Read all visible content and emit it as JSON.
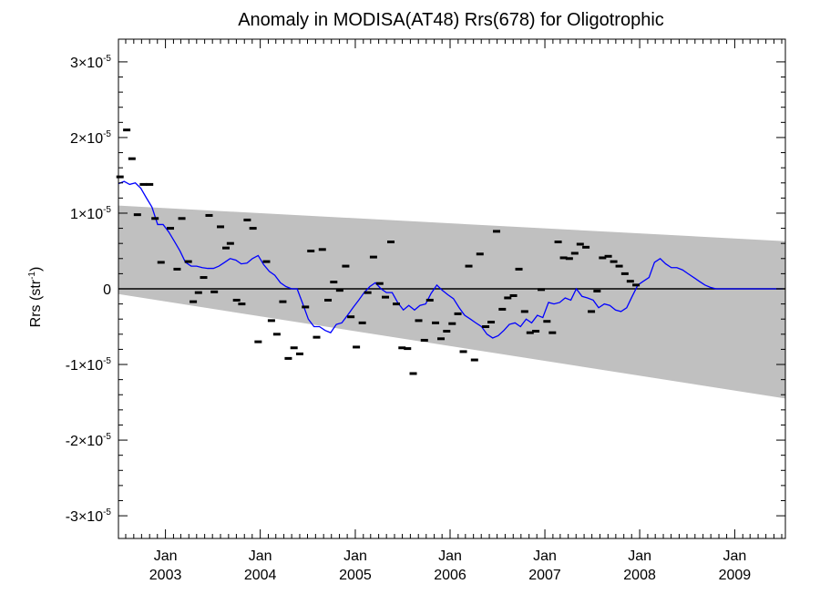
{
  "chart_data": {
    "type": "line",
    "title": "Anomaly in MODISA(AT48) Rrs(678) for Oligotrophic",
    "ylabel": {
      "base": "Rrs (str",
      "sup": "-1",
      "close": ")"
    },
    "xlabel": "",
    "xlim": [
      "2002-07-04",
      "2009-07-15"
    ],
    "ylim": [
      -3.3e-05,
      3.3e-05
    ],
    "grid": false,
    "legend": "none",
    "y_ticks": [
      {
        "value": -3e-05,
        "mant": "-3",
        "base": "×10",
        "exp": "-5"
      },
      {
        "value": -2e-05,
        "mant": "-2",
        "base": "×10",
        "exp": "-5"
      },
      {
        "value": -1e-05,
        "mant": "-1",
        "base": "×10",
        "exp": "-5"
      },
      {
        "value": 0,
        "mant": "0",
        "base": "",
        "exp": ""
      },
      {
        "value": 1e-05,
        "mant": "1",
        "base": "×10",
        "exp": "-5"
      },
      {
        "value": 2e-05,
        "mant": "2",
        "base": "×10",
        "exp": "-5"
      },
      {
        "value": 3e-05,
        "mant": "3",
        "base": "×10",
        "exp": "-5"
      }
    ],
    "x_ticks": [
      {
        "date": "2003-01-01",
        "month": "Jan",
        "year": "2003"
      },
      {
        "date": "2004-01-01",
        "month": "Jan",
        "year": "2004"
      },
      {
        "date": "2005-01-01",
        "month": "Jan",
        "year": "2005"
      },
      {
        "date": "2006-01-01",
        "month": "Jan",
        "year": "2006"
      },
      {
        "date": "2007-01-01",
        "month": "Jan",
        "year": "2007"
      },
      {
        "date": "2008-01-01",
        "month": "Jan",
        "year": "2008"
      },
      {
        "date": "2009-01-01",
        "month": "Jan",
        "year": "2009"
      }
    ],
    "colors": {
      "band": "#c0c0c0",
      "running_mean": "#0000ff",
      "points": "#000000",
      "zero_line": "#000000"
    },
    "envelope": {
      "upper": [
        [
          "2002-07-04",
          1.1e-05
        ],
        [
          "2009-07-15",
          6.3e-06
        ]
      ],
      "lower": [
        [
          "2002-07-04",
          -7e-07
        ],
        [
          "2009-07-15",
          -1.45e-05
        ]
      ]
    },
    "series": [
      {
        "style": "line",
        "x": [
          "2002-07-04",
          "2002-07-26",
          "2002-08-16",
          "2002-09-07",
          "2002-09-28",
          "2002-10-20",
          "2002-11-10",
          "2002-12-02",
          "2002-12-23",
          "2003-01-14",
          "2003-02-04",
          "2003-02-26",
          "2003-03-19",
          "2003-04-10",
          "2003-05-01",
          "2003-05-23",
          "2003-06-13",
          "2003-07-05",
          "2003-07-26",
          "2003-08-17",
          "2003-09-07",
          "2003-09-29",
          "2003-10-20",
          "2003-11-11",
          "2003-12-02",
          "2003-12-24",
          "2004-01-14",
          "2004-02-05",
          "2004-02-26",
          "2004-03-19",
          "2004-04-09",
          "2004-05-01",
          "2004-05-22",
          "2004-06-13",
          "2004-07-04",
          "2004-07-26",
          "2004-08-16",
          "2004-09-07",
          "2004-09-28",
          "2004-10-20",
          "2004-11-10",
          "2004-12-02",
          "2004-12-23",
          "2005-01-14",
          "2005-02-04",
          "2005-02-26",
          "2005-03-19",
          "2005-04-10",
          "2005-05-01",
          "2005-05-23",
          "2005-06-13",
          "2005-07-05",
          "2005-07-26",
          "2005-08-17",
          "2005-09-07",
          "2005-09-29",
          "2005-10-20",
          "2005-11-11",
          "2005-12-02",
          "2005-12-24",
          "2006-01-14",
          "2006-02-05",
          "2006-02-26",
          "2006-03-20",
          "2006-04-10",
          "2006-05-02",
          "2006-05-23",
          "2006-06-14",
          "2006-07-05",
          "2006-07-27",
          "2006-08-17",
          "2006-09-08",
          "2006-09-29",
          "2006-10-21",
          "2006-11-11",
          "2006-12-03",
          "2006-12-24",
          "2007-01-15",
          "2007-02-05",
          "2007-02-27",
          "2007-03-20",
          "2007-04-11",
          "2007-05-02",
          "2007-05-24",
          "2007-06-14",
          "2007-07-06",
          "2007-07-27",
          "2007-08-18",
          "2007-09-08",
          "2007-09-30",
          "2007-10-21",
          "2007-11-12",
          "2007-12-03",
          "2007-12-25",
          "2008-01-15",
          "2008-02-06",
          "2008-02-27",
          "2008-03-20",
          "2008-04-10",
          "2008-05-02",
          "2008-05-23",
          "2008-06-14",
          "2008-07-05",
          "2008-07-27",
          "2008-08-17",
          "2008-09-08",
          "2008-09-29",
          "2008-10-21",
          "2008-11-11",
          "2008-12-03",
          "2008-12-24",
          "2009-01-15",
          "2009-02-05",
          "2009-02-27",
          "2009-03-20",
          "2009-04-11",
          "2009-05-02",
          "2009-05-24",
          "2009-06-14",
          "2009-07-06"
        ],
        "y": [
          1.39e-05,
          1.42e-05,
          1.38e-05,
          1.4e-05,
          1.33e-05,
          1.2e-05,
          1.08e-05,
          8.5e-06,
          8.5e-06,
          7.5e-06,
          6.3e-06,
          5e-06,
          3.5e-06,
          3e-06,
          3e-06,
          2.8e-06,
          2.7e-06,
          2.7e-06,
          3e-06,
          3.5e-06,
          4e-06,
          3.8e-06,
          3.3e-06,
          3.4e-06,
          4e-06,
          4.4e-06,
          3.2e-06,
          2.3e-06,
          1.8e-06,
          8e-07,
          3e-07,
          0.0,
          0.0,
          -2e-06,
          -4e-06,
          -5e-06,
          -5e-06,
          -5.5e-06,
          -5.8e-06,
          -4.7e-06,
          -4.5e-06,
          -3.5e-06,
          -2.5e-06,
          -1.5e-06,
          -5e-07,
          3e-07,
          8e-07,
          0.0,
          -5e-07,
          -5e-07,
          -1.8e-06,
          -2.8e-06,
          -2.2e-06,
          -2.8e-06,
          -2.2e-06,
          -2e-06,
          -6e-07,
          5e-07,
          -2e-07,
          -8e-07,
          -1.3e-06,
          -2.5e-06,
          -3.5e-06,
          -4e-06,
          -4.5e-06,
          -5e-06,
          -6e-06,
          -6.5e-06,
          -6.2e-06,
          -5.5e-06,
          -4.7e-06,
          -4.5e-06,
          -5e-06,
          -4e-06,
          -4.5e-06,
          -3.5e-06,
          -3.8e-06,
          -1.8e-06,
          -2e-06,
          -1.8e-06,
          -1.2e-06,
          -1.5e-06,
          0.0,
          -1e-06,
          -1.2e-06,
          -1.5e-06,
          -2.5e-06,
          -2e-06,
          -2.2e-06,
          -2.8e-06,
          -3e-06,
          -2.5e-06,
          -1e-06,
          5e-07,
          1e-06,
          1.5e-06,
          3.5e-06,
          4e-06,
          3.3e-06,
          2.8e-06,
          2.8e-06,
          2.5e-06,
          2e-06,
          1.5e-06,
          1e-06,
          5e-07,
          2e-07,
          0.0,
          0.0,
          0.0,
          0.0,
          0.0,
          0.0,
          0.0,
          0.0,
          0.0,
          0.0,
          0.0,
          0.0,
          0.0
        ]
      },
      {
        "style": "points",
        "x": [
          "2002-07-10",
          "2002-08-05",
          "2002-08-25",
          "2002-09-15",
          "2002-10-08",
          "2002-11-01",
          "2002-11-22",
          "2002-12-15",
          "2003-01-20",
          "2003-02-15",
          "2003-03-05",
          "2003-03-30",
          "2003-04-18",
          "2003-05-08",
          "2003-05-28",
          "2003-06-18",
          "2003-07-08",
          "2003-08-01",
          "2003-08-22",
          "2003-09-08",
          "2003-10-02",
          "2003-10-22",
          "2003-11-12",
          "2003-12-04",
          "2003-12-24",
          "2004-01-25",
          "2004-02-13",
          "2004-03-05",
          "2004-03-28",
          "2004-04-18",
          "2004-05-10",
          "2004-06-01",
          "2004-06-23",
          "2004-07-14",
          "2004-08-05",
          "2004-08-27",
          "2004-09-18",
          "2004-10-10",
          "2004-11-02",
          "2004-11-25",
          "2004-12-15",
          "2005-01-05",
          "2005-01-28",
          "2005-02-18",
          "2005-03-12",
          "2005-04-05",
          "2005-04-27",
          "2005-05-18",
          "2005-06-08",
          "2005-06-30",
          "2005-07-21",
          "2005-08-12",
          "2005-09-02",
          "2005-09-24",
          "2005-10-15",
          "2005-11-06",
          "2005-11-27",
          "2005-12-19",
          "2006-01-09",
          "2006-01-31",
          "2006-02-21",
          "2006-03-14",
          "2006-04-05",
          "2006-04-26",
          "2006-05-18",
          "2006-06-08",
          "2006-06-29",
          "2006-07-21",
          "2006-08-11",
          "2006-09-02",
          "2006-09-23",
          "2006-10-15",
          "2006-11-05",
          "2006-11-27",
          "2006-12-18",
          "2007-01-09",
          "2007-01-30",
          "2007-02-21",
          "2007-03-14",
          "2007-04-05",
          "2007-04-26",
          "2007-05-17",
          "2007-06-08",
          "2007-06-29",
          "2007-07-21",
          "2007-08-11",
          "2007-09-02",
          "2007-09-23",
          "2007-10-14",
          "2007-11-05",
          "2007-11-26",
          "2007-12-18",
          "2008-01-08",
          "2008-01-30",
          "2008-02-20",
          "2008-03-13",
          "2008-04-03",
          "2008-04-25",
          "2008-05-16",
          "2008-06-07",
          "2008-06-28",
          "2008-07-20",
          "2008-08-10",
          "2008-09-01",
          "2008-09-22",
          "2008-10-14",
          "2008-11-04",
          "2008-11-26",
          "2008-12-17",
          "2009-01-08",
          "2009-01-29",
          "2009-02-20",
          "2009-03-13",
          "2009-04-04",
          "2009-04-25",
          "2009-05-17",
          "2009-06-07",
          "2009-06-28"
        ],
        "y": [
          1.48e-05,
          2.1e-05,
          1.72e-05,
          9.8e-06,
          1.38e-05,
          1.38e-05,
          9.3e-06,
          3.5e-06,
          8e-06,
          2.6e-06,
          9.3e-06,
          3.6e-06,
          -1.7e-06,
          -5e-07,
          1.5e-06,
          9.7e-06,
          -4e-07,
          8.2e-06,
          5.4e-06,
          6e-06,
          -1.5e-06,
          -2e-06,
          9.1e-06,
          8e-06,
          -7e-06,
          3.6e-06,
          -4.2e-06,
          -6e-06,
          -1.7e-06,
          -9.2e-06,
          -7.8e-06,
          -8.6e-06,
          -2.4e-06,
          5e-06,
          -6.4e-06,
          5.2e-06,
          -1.5e-06,
          9e-07,
          -2e-07,
          3e-06,
          -3.7e-06,
          -7.7e-06,
          -4.5e-06,
          -5e-07,
          4.2e-06,
          7e-07,
          -1.1e-06,
          6.2e-06,
          -2e-06,
          -7.8e-06,
          -7.9e-06,
          -1.12e-05,
          -4.2e-06,
          -6.8e-06,
          -1.5e-06,
          -4.5e-06,
          -6.6e-06,
          -5.6e-06,
          -4.6e-06,
          -3.3e-06,
          -8.3e-06,
          3e-06,
          -9.4e-06,
          4.6e-06,
          -5e-06,
          -4.4e-06,
          7.6e-06,
          -2.7e-06,
          -1.2e-06,
          -9e-07,
          2.6e-06,
          -3e-06,
          -5.8e-06,
          -5.6e-06,
          -1e-07,
          -4.3e-06,
          -5.8e-06,
          6.2e-06,
          4.1e-06,
          4e-06,
          4.7e-06,
          5.9e-06,
          5.5e-06,
          -3e-06,
          -3e-07,
          4.1e-06,
          4.3e-06,
          3.6e-06,
          3e-06,
          2e-06,
          1e-06,
          5e-07,
          0.0,
          0.0,
          0.0,
          0.0,
          0.0,
          0.0,
          0.0,
          0.0,
          0.0,
          0.0,
          0.0,
          0.0,
          0.0,
          0.0,
          0.0,
          0.0,
          0.0,
          0.0,
          0.0,
          0.0,
          0.0,
          0.0,
          0.0,
          0.0,
          0.0,
          0.0
        ]
      }
    ]
  }
}
